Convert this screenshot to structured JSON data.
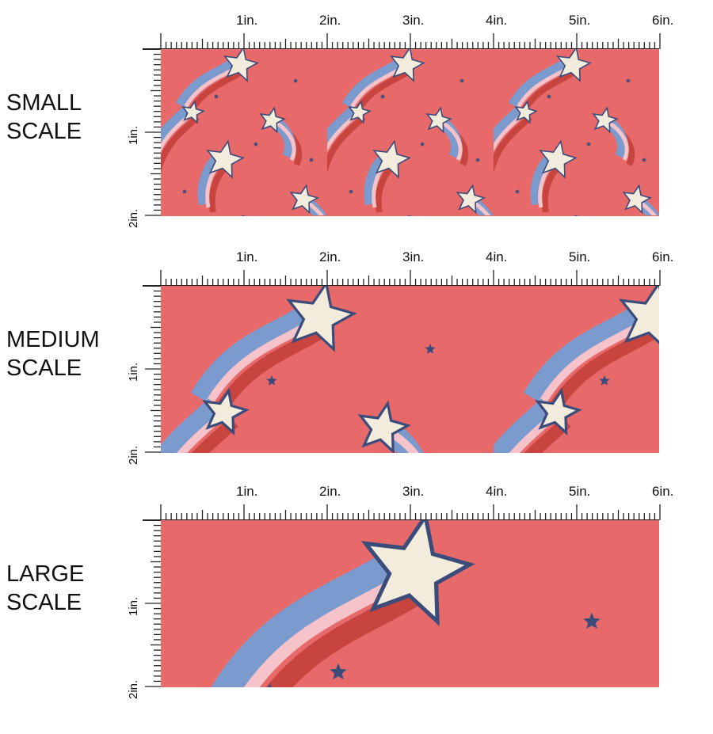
{
  "panels": [
    {
      "label_line1": "SMALL",
      "label_line2": "SCALE",
      "scale": 1
    },
    {
      "label_line1": "MEDIUM",
      "label_line2": "SCALE",
      "scale": 2
    },
    {
      "label_line1": "LARGE",
      "label_line2": "SCALE",
      "scale": 3.2
    }
  ],
  "ruler": {
    "h_labels": [
      "1in.",
      "2in.",
      "3in.",
      "4in.",
      "5in.",
      "6in."
    ],
    "v_labels": [
      "1in.",
      "2in."
    ]
  },
  "colors": {
    "background": "#e8696a",
    "star": "#f3ecdc",
    "outline": "#3b4c7a",
    "blue": "#7b9bcf",
    "pink": "#f7c3ca",
    "red": "#c8453f"
  }
}
